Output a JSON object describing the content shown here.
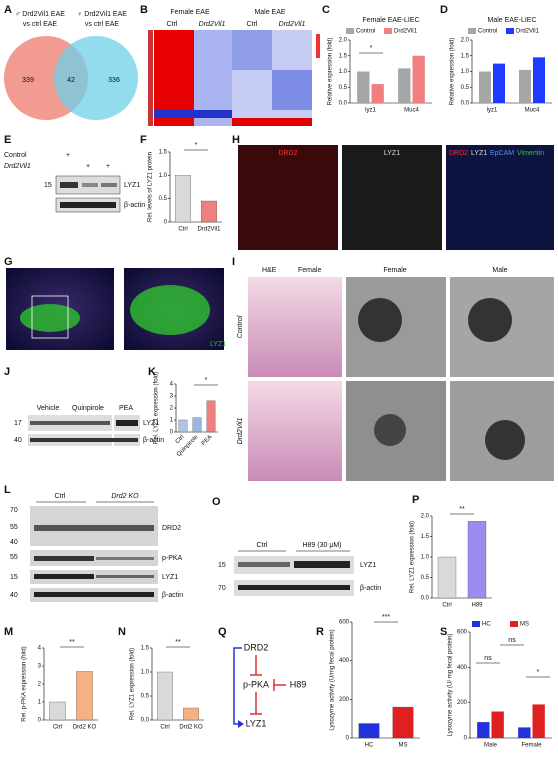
{
  "panel_letters": [
    "A",
    "B",
    "C",
    "D",
    "E",
    "F",
    "G",
    "H",
    "I",
    "J",
    "K",
    "L",
    "M",
    "N",
    "O",
    "P",
    "Q",
    "R",
    "S"
  ],
  "venn": {
    "male_title": "♂ Drd2Vil1 EAE",
    "male_sub": "vs ctrl EAE",
    "female_title": "♀ Drd2Vil1 EAE",
    "female_sub": "vs ctrl EAE",
    "counts": [
      "339",
      "42",
      "336"
    ]
  },
  "heatmap": {
    "groups": [
      "Female EAE",
      "Male EAE"
    ],
    "columns": [
      "Ctrl",
      "Drd2Vil1",
      "Ctrl",
      "Drd2Vil1"
    ]
  },
  "blot_e": {
    "rows": [
      "Control",
      "Drd2Vil1"
    ],
    "control_marks": [
      "+"
    ],
    "drd2_marks": [
      "+",
      "+"
    ],
    "markers": [
      "15"
    ],
    "bands": [
      "LYZ1",
      "β-actin"
    ]
  },
  "image_g": {
    "label": "LYZ1"
  },
  "image_h": {
    "labels": [
      "DRD2",
      "LYZ1"
    ],
    "merge": [
      "DRD2",
      "LYZ1",
      "EpCAM",
      "Vimentin"
    ]
  },
  "image_i": {
    "stain": "H&E",
    "columns": [
      "Female",
      "Female",
      "Male"
    ],
    "rows": [
      "Control",
      "Drd2Vil1"
    ]
  },
  "blot_j": {
    "lanes": [
      "Vehicle",
      "Quinpirole",
      "PEA"
    ],
    "markers": [
      "17",
      "40"
    ],
    "bands": [
      "LYZ1",
      "β-actin"
    ]
  },
  "blot_l": {
    "groups": [
      "Ctrl",
      "Drd2 KO"
    ],
    "markers": [
      "70",
      "55",
      "40",
      "55",
      "15",
      "40"
    ],
    "bands": [
      "DRD2",
      "p-PKA",
      "LYZ1",
      "β-actin"
    ]
  },
  "blot_o": {
    "groups": [
      "Ctrl",
      "H89 (30 μM)"
    ],
    "markers": [
      "15",
      "70"
    ],
    "bands": [
      "LYZ1",
      "β-actin"
    ]
  },
  "diagram_q": {
    "nodes": [
      "DRD2",
      "p-PKA",
      "H89",
      "LYZ1"
    ]
  },
  "chart_data": [
    {
      "type": "bar",
      "title": "Female EAE-LIEC",
      "ylabel": "Relative expression (fold)",
      "categories": [
        "lyz1",
        "Muc4"
      ],
      "series": [
        {
          "name": "Control",
          "color": "#a6a6a6",
          "values": [
            1.0,
            1.1
          ]
        },
        {
          "name": "Drd2Vil1",
          "color": "#f08080",
          "values": [
            0.6,
            1.5
          ]
        }
      ],
      "ylim": [
        0,
        2
      ],
      "yticks": [
        {
          "value": 0,
          "label": "0.0"
        },
        0.5,
        {
          "value": 1,
          "label": "1.0"
        },
        1.5,
        {
          "value": 2,
          "label": "2.0"
        }
      ],
      "annotations": [
        "*"
      ]
    },
    {
      "type": "bar",
      "title": "Male EAE-LIEC",
      "ylabel": "Relative expression (fold)",
      "categories": [
        "lyz1",
        "Muc4"
      ],
      "series": [
        {
          "name": "Control",
          "color": "#a6a6a6",
          "values": [
            1.0,
            1.05
          ]
        },
        {
          "name": "Drd2Vil1",
          "color": "#1f3bff",
          "values": [
            1.25,
            1.45
          ]
        }
      ],
      "ylim": [
        0,
        2
      ],
      "yticks": [
        {
          "value": 0,
          "label": "0.0"
        },
        0.5,
        {
          "value": 1,
          "label": "1.0"
        },
        1.5,
        {
          "value": 2,
          "label": "2.0"
        }
      ],
      "annotations": []
    },
    {
      "type": "bar",
      "ylabel": "Rel. levels of LYZ1 protein",
      "categories": [
        "Ctrl",
        "Drd2Vil1"
      ],
      "values": [
        1.0,
        0.45
      ],
      "colors": [
        "#d9d9d9",
        "#f08080"
      ],
      "ylim": [
        0,
        1.5
      ],
      "yticks": [
        0,
        0.5,
        {
          "value": 1,
          "label": "1.0"
        },
        1.5
      ],
      "annotations": [
        "*"
      ]
    },
    {
      "type": "bar",
      "ylabel": "Rel. LYZ1 expression (fold)",
      "categories": [
        "Ctrl",
        "Quinpirole",
        "PEA"
      ],
      "values": [
        1.0,
        1.2,
        2.6
      ],
      "colors": [
        "#b0c4de",
        "#9bb7e0",
        "#f08080"
      ],
      "ylim": [
        0,
        4
      ],
      "yticks": [
        0,
        1,
        2,
        3,
        4
      ],
      "annotations": [
        "*"
      ]
    },
    {
      "type": "bar",
      "ylabel": "Rel. p-PKA expression (fold)",
      "categories": [
        "Ctrl",
        "Drd2 KO"
      ],
      "values": [
        1.0,
        2.7
      ],
      "colors": [
        "#d9d9d9",
        "#f4b183"
      ],
      "ylim": [
        0,
        4
      ],
      "yticks": [
        0,
        1,
        2,
        3,
        4
      ],
      "annotations": [
        "**"
      ]
    },
    {
      "type": "bar",
      "ylabel": "Rel. LYZ1 expression (fold)",
      "categories": [
        "Ctrl",
        "Drd2 KO"
      ],
      "values": [
        1.0,
        0.25
      ],
      "colors": [
        "#d9d9d9",
        "#f4b183"
      ],
      "ylim": [
        0,
        1.5
      ],
      "yticks": [
        {
          "value": 0,
          "label": "0.0"
        },
        0.5,
        {
          "value": 1,
          "label": "1.0"
        },
        1.5
      ],
      "annotations": [
        "**"
      ]
    },
    {
      "type": "bar",
      "ylabel": "Rel. LYZ1 expression (fold)",
      "categories": [
        "Ctrl",
        "H89"
      ],
      "values": [
        1.0,
        1.87
      ],
      "colors": [
        "#d9d9d9",
        "#9b8cf0"
      ],
      "ylim": [
        0,
        2
      ],
      "yticks": [
        {
          "value": 0,
          "label": "0.0"
        },
        0.5,
        {
          "value": 1,
          "label": "1.0"
        },
        1.5,
        {
          "value": 2,
          "label": "2.0"
        }
      ],
      "annotations": [
        "**"
      ]
    },
    {
      "type": "bar",
      "ylabel": "Lysozyme activity (U/mg fecal protein)",
      "categories": [
        "HC",
        "MS"
      ],
      "values": [
        75,
        160
      ],
      "colors": [
        "#2233dd",
        "#e02020"
      ],
      "ylim": [
        0,
        600
      ],
      "yticks": [
        0,
        200,
        400,
        600
      ],
      "annotations": [
        "***"
      ]
    },
    {
      "type": "bar",
      "ylabel": "Lysozyme activity (U/ mg fecal protein)",
      "categories": [
        "Male",
        "Female"
      ],
      "series": [
        {
          "name": "HC",
          "color": "#2233dd",
          "values": [
            90,
            60
          ]
        },
        {
          "name": "MS",
          "color": "#e02020",
          "values": [
            150,
            190
          ]
        }
      ],
      "ylim": [
        0,
        600
      ],
      "yticks": [
        0,
        200,
        400,
        600
      ],
      "annotations": [
        "ns",
        "ns",
        "*"
      ]
    }
  ]
}
